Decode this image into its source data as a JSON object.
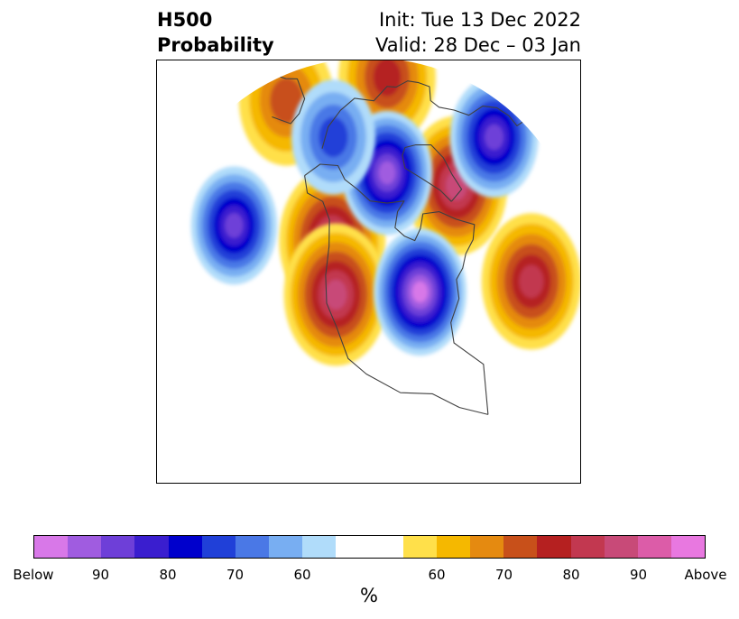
{
  "title": {
    "left_line1": "H500",
    "left_line2": "Probability",
    "right_line1": "Init: Tue 13 Dec 2022",
    "right_line2": "Valid: 28 Dec – 03 Jan"
  },
  "colorbar": {
    "units": "%",
    "colors": [
      "#d878e8",
      "#a05ce0",
      "#6e3fd8",
      "#3a1ecf",
      "#0000cc",
      "#2040d8",
      "#4a78e6",
      "#78aef2",
      "#b0dcfa",
      "#ffffff",
      "#ffffff",
      "#ffe04a",
      "#f5b800",
      "#e58a10",
      "#c8501a",
      "#b52020",
      "#c23850",
      "#c84a78",
      "#dc5ca8",
      "#e878e0"
    ],
    "tick_labels": [
      "Below",
      "90",
      "80",
      "70",
      "60",
      "60",
      "70",
      "80",
      "90",
      "Above"
    ]
  },
  "map": {
    "anomalies": [
      {
        "kind": "above",
        "level": "90",
        "lon": -128,
        "lat": 52
      },
      {
        "kind": "above",
        "level": "90",
        "lon": -118,
        "lat": 38
      },
      {
        "kind": "above",
        "level": "90",
        "lon": -45,
        "lat": 62
      },
      {
        "kind": "above",
        "level": "80",
        "lon": -55,
        "lat": 28
      },
      {
        "kind": "above",
        "level": "75",
        "lon": 80,
        "lat": 70
      },
      {
        "kind": "above",
        "level": "70",
        "lon": 150,
        "lat": 55
      },
      {
        "kind": "below",
        "level": "Below",
        "lon": -88,
        "lat": 40
      },
      {
        "kind": "below",
        "level": "90",
        "lon": -100,
        "lat": 78
      },
      {
        "kind": "below",
        "level": "85",
        "lon": -10,
        "lat": 55
      },
      {
        "kind": "below",
        "level": "85",
        "lon": -160,
        "lat": 35
      },
      {
        "kind": "below",
        "level": "70",
        "lon": 170,
        "lat": 72
      }
    ],
    "fill_colors": {
      "above": [
        "#ffe04a",
        "#f5b800",
        "#e58a10",
        "#c8501a",
        "#b52020",
        "#c23850",
        "#c84a78"
      ],
      "below": [
        "#b0dcfa",
        "#78aef2",
        "#4a78e6",
        "#2040d8",
        "#0000cc",
        "#3a1ecf",
        "#6e3fd8",
        "#a05ce0",
        "#d878e8"
      ]
    },
    "coastline_color": "#404040"
  }
}
